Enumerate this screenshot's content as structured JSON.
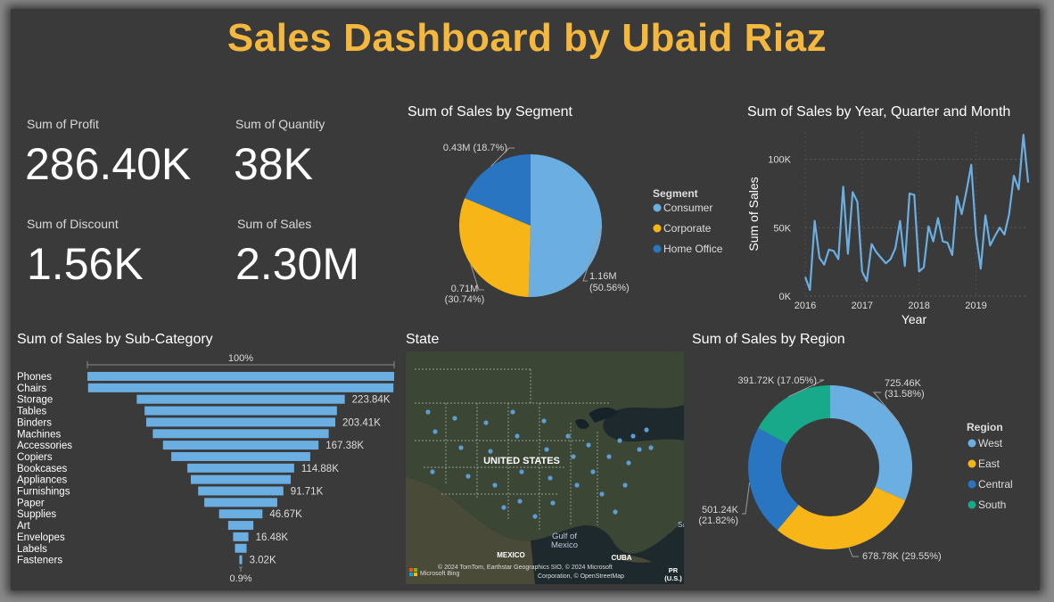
{
  "title": "Sales Dashboard by Ubaid Riaz",
  "kpis": [
    {
      "label": "Sum of Profit",
      "value": "286.40K"
    },
    {
      "label": "Sum of Quantity",
      "value": "38K"
    },
    {
      "label": "Sum of Discount",
      "value": "1.56K"
    },
    {
      "label": "Sum of Sales",
      "value": "2.30M"
    }
  ],
  "colors": {
    "blue_light": "#6aaee2",
    "yellow": "#f8b518",
    "blue_dark": "#2a75c2",
    "teal": "#18a98a",
    "title": "#f5b83e"
  },
  "chart_data": [
    {
      "id": "segment",
      "type": "pie",
      "title": "Sum of Sales by Segment",
      "legend_title": "Segment",
      "categories": [
        "Consumer",
        "Corporate",
        "Home Office"
      ],
      "values": [
        1.16,
        0.71,
        0.43
      ],
      "labels": [
        [
          "1.16M",
          "(50.56%)"
        ],
        [
          "0.71M",
          "(30.74%)"
        ],
        [
          "0.43M (18.7%)"
        ]
      ],
      "percents": [
        50.56,
        30.74,
        18.7
      ]
    },
    {
      "id": "timeline",
      "type": "line",
      "title": "Sum of Sales by Year, Quarter and Month",
      "xlabel": "Year",
      "ylabel": "Sum of Sales",
      "ylim": [
        0,
        120000
      ],
      "yticks": [
        {
          "v": 0,
          "t": "0K"
        },
        {
          "v": 50000,
          "t": "50K"
        },
        {
          "v": 100000,
          "t": "100K"
        }
      ],
      "xticks": [
        "2016",
        "2017",
        "2018",
        "2019"
      ],
      "values": [
        14000,
        4500,
        55000,
        28000,
        23000,
        34000,
        33000,
        27000,
        80000,
        31000,
        76000,
        69000,
        18000,
        11000,
        38000,
        32000,
        28000,
        24000,
        27000,
        35000,
        55000,
        22000,
        75000,
        74000,
        18000,
        21000,
        51000,
        40000,
        57000,
        40000,
        39000,
        30000,
        73000,
        60000,
        77000,
        96000,
        45000,
        20000,
        59000,
        37000,
        44000,
        50000,
        45000,
        60000,
        88000,
        78000,
        118000,
        83000
      ]
    },
    {
      "id": "subcategory",
      "type": "bar",
      "title": "Sum of Sales by Sub-Category",
      "categories": [
        "Phones",
        "Chairs",
        "Storage",
        "Tables",
        "Binders",
        "Machines",
        "Accessories",
        "Copiers",
        "Bookcases",
        "Appliances",
        "Furnishings",
        "Paper",
        "Supplies",
        "Art",
        "Envelopes",
        "Labels",
        "Fasteners"
      ],
      "values": [
        330.01,
        328.45,
        223.84,
        206.97,
        203.41,
        189.24,
        167.38,
        149.53,
        114.88,
        107.53,
        91.71,
        78.48,
        46.67,
        27.12,
        16.48,
        12.49,
        3.02
      ],
      "value_labels": [
        "",
        "",
        "223.84K",
        "",
        "203.41K",
        "",
        "167.38K",
        "",
        "114.88K",
        "",
        "91.71K",
        "",
        "46.67K",
        "",
        "16.48K",
        "",
        "3.02K"
      ],
      "top_label": "100%",
      "bottom_label": "0.9%"
    },
    {
      "id": "region",
      "type": "pie",
      "title": "Sum of Sales by Region",
      "legend_title": "Region",
      "categories": [
        "West",
        "East",
        "Central",
        "South"
      ],
      "values": [
        725.46,
        678.78,
        501.24,
        391.72
      ],
      "labels": [
        [
          "725.46K",
          "(31.58%)"
        ],
        [
          "678.78K (29.55%)"
        ],
        [
          "501.24K",
          "(21.82%)"
        ],
        [
          "391.72K (17.05%)"
        ]
      ],
      "percents": [
        31.58,
        29.55,
        21.82,
        17.05
      ]
    }
  ],
  "map": {
    "title": "State",
    "country_label": "UNITED STATES",
    "gulf_label_1": "Gulf of",
    "gulf_label_2": "Mexico",
    "mexico_label": "MEXICO",
    "cuba_label": "CUBA",
    "pr_label_1": "PR",
    "pr_label_2": "(U.S.)",
    "edge_label": "Sa",
    "bing_label": "Microsoft Bing",
    "copyright_1": "© 2024 TomTom, Earthstar Geographics SIO, © 2024 Microsoft",
    "copyright_2": "Corporation, © OpenStreetMap"
  }
}
